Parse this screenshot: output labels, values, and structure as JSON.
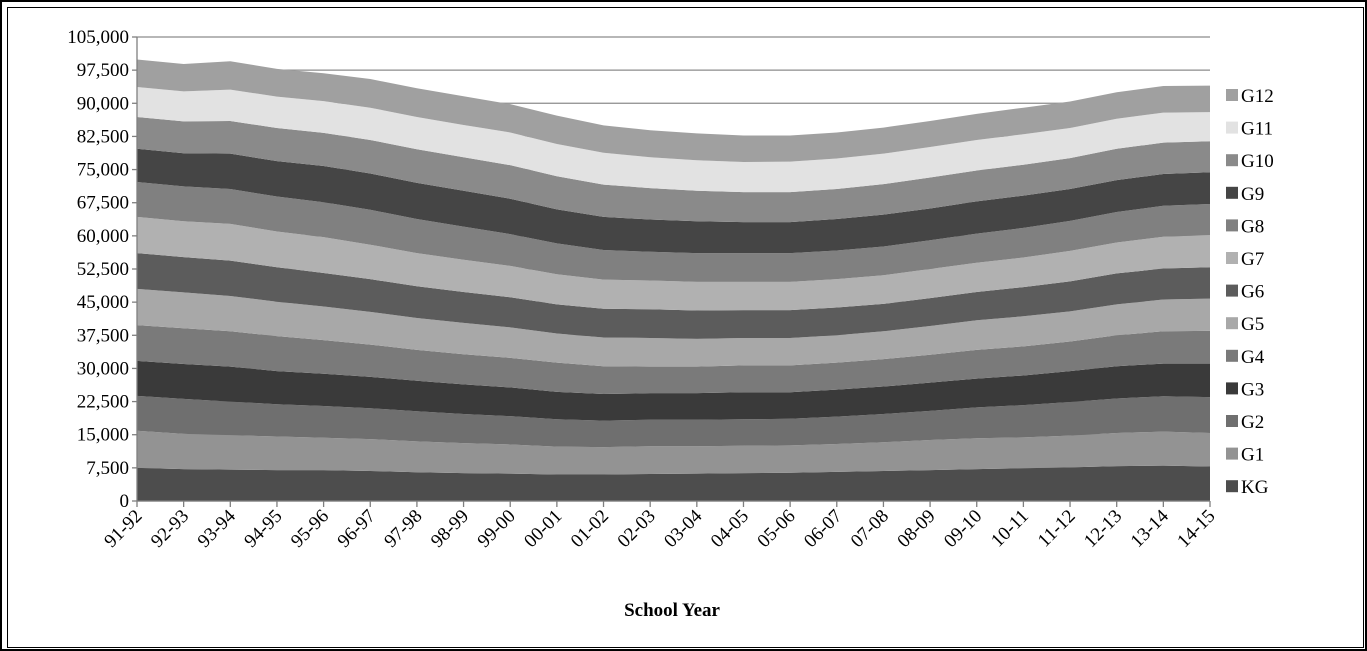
{
  "chart_data": {
    "type": "area",
    "stacked": true,
    "xlabel": "School Year",
    "ylabel": "",
    "ylim": [
      0,
      105000
    ],
    "yticks": [
      "0",
      "7,500",
      "15,000",
      "22,500",
      "30,000",
      "37,500",
      "45,000",
      "52,500",
      "60,000",
      "67,500",
      "75,000",
      "82,500",
      "90,000",
      "97,500",
      "105,000"
    ],
    "categories": [
      "91-92",
      "92-93",
      "93-94",
      "94-95",
      "95-96",
      "96-97",
      "97-98",
      "98-99",
      "99-00",
      "00-01",
      "01-02",
      "02-03",
      "03-04",
      "04-05",
      "05-06",
      "06-07",
      "07-08",
      "08-09",
      "09-10",
      "10-11",
      "11-12",
      "12-13",
      "13-14",
      "14-15"
    ],
    "grid": "horizontal",
    "legend_position": "right",
    "series": [
      {
        "name": "KG",
        "color": "#4d4d4d",
        "values": [
          7500,
          7200,
          7100,
          7000,
          7000,
          6800,
          6500,
          6300,
          6200,
          6000,
          6000,
          6100,
          6200,
          6300,
          6400,
          6600,
          6800,
          7000,
          7200,
          7400,
          7600,
          7900,
          8000,
          7800
        ]
      },
      {
        "name": "G1",
        "color": "#939393",
        "values": [
          8400,
          8000,
          7800,
          7600,
          7300,
          7200,
          7000,
          6800,
          6600,
          6300,
          6200,
          6300,
          6200,
          6200,
          6200,
          6300,
          6500,
          6800,
          7000,
          7000,
          7200,
          7500,
          7700,
          7600
        ]
      },
      {
        "name": "G2",
        "color": "#6f6f6f",
        "values": [
          7900,
          7900,
          7600,
          7300,
          7200,
          7000,
          6800,
          6600,
          6400,
          6200,
          6000,
          6000,
          6000,
          6000,
          6000,
          6200,
          6400,
          6600,
          7000,
          7300,
          7600,
          7800,
          8000,
          8100
        ]
      },
      {
        "name": "G3",
        "color": "#3a3a3a",
        "values": [
          7900,
          7900,
          7900,
          7500,
          7300,
          7100,
          6900,
          6700,
          6500,
          6200,
          6000,
          6000,
          6000,
          6100,
          6000,
          6100,
          6200,
          6400,
          6500,
          6700,
          7000,
          7300,
          7400,
          7600
        ]
      },
      {
        "name": "G4",
        "color": "#7a7a7a",
        "values": [
          8100,
          8100,
          8000,
          7900,
          7600,
          7300,
          7000,
          6800,
          6700,
          6600,
          6300,
          6000,
          6000,
          6100,
          6100,
          6100,
          6200,
          6300,
          6500,
          6600,
          6700,
          7000,
          7300,
          7400
        ]
      },
      {
        "name": "G5",
        "color": "#a8a8a8",
        "values": [
          8200,
          8100,
          8000,
          7800,
          7600,
          7400,
          7200,
          7100,
          6900,
          6600,
          6500,
          6500,
          6300,
          6200,
          6200,
          6200,
          6300,
          6500,
          6700,
          6800,
          6800,
          7000,
          7200,
          7300
        ]
      },
      {
        "name": "G6",
        "color": "#5c5c5c",
        "values": [
          8100,
          8000,
          8000,
          7800,
          7600,
          7400,
          7200,
          7000,
          6800,
          6600,
          6500,
          6500,
          6400,
          6300,
          6300,
          6300,
          6200,
          6300,
          6400,
          6600,
          6800,
          7000,
          7000,
          7100
        ]
      },
      {
        "name": "G7",
        "color": "#b1b1b1",
        "values": [
          8200,
          8100,
          8300,
          8100,
          8100,
          7800,
          7500,
          7300,
          7100,
          6800,
          6600,
          6500,
          6500,
          6400,
          6400,
          6400,
          6500,
          6600,
          6600,
          6700,
          6900,
          7000,
          7200,
          7300
        ]
      },
      {
        "name": "G8",
        "color": "#808080",
        "values": [
          7900,
          7900,
          7900,
          7900,
          7900,
          7900,
          7700,
          7500,
          7200,
          7000,
          6700,
          6500,
          6500,
          6500,
          6500,
          6500,
          6500,
          6500,
          6600,
          6700,
          6800,
          6900,
          7000,
          7000
        ]
      },
      {
        "name": "G9",
        "color": "#454545",
        "values": [
          7500,
          7500,
          8000,
          8000,
          8200,
          8200,
          8200,
          8100,
          8000,
          7700,
          7500,
          7300,
          7200,
          7000,
          7000,
          7100,
          7200,
          7200,
          7300,
          7300,
          7200,
          7200,
          7200,
          7200
        ]
      },
      {
        "name": "G10",
        "color": "#8a8a8a",
        "values": [
          7200,
          7200,
          7400,
          7500,
          7500,
          7600,
          7600,
          7600,
          7600,
          7500,
          7300,
          7100,
          6900,
          6800,
          6800,
          6800,
          6900,
          7000,
          7000,
          7000,
          7000,
          7100,
          7100,
          7000
        ]
      },
      {
        "name": "G11",
        "color": "#e2e2e2",
        "values": [
          6800,
          6800,
          7100,
          7100,
          7200,
          7300,
          7300,
          7300,
          7400,
          7300,
          7200,
          7000,
          6900,
          6800,
          6900,
          6900,
          6900,
          6900,
          6900,
          6900,
          6800,
          6800,
          6800,
          6600
        ]
      },
      {
        "name": "G12",
        "color": "#a0a0a0",
        "values": [
          6200,
          6200,
          6400,
          6300,
          6300,
          6500,
          6500,
          6500,
          6400,
          6400,
          6200,
          6100,
          6100,
          6000,
          5900,
          5900,
          5900,
          5900,
          5900,
          6000,
          6000,
          6000,
          6000,
          6000
        ]
      }
    ]
  }
}
